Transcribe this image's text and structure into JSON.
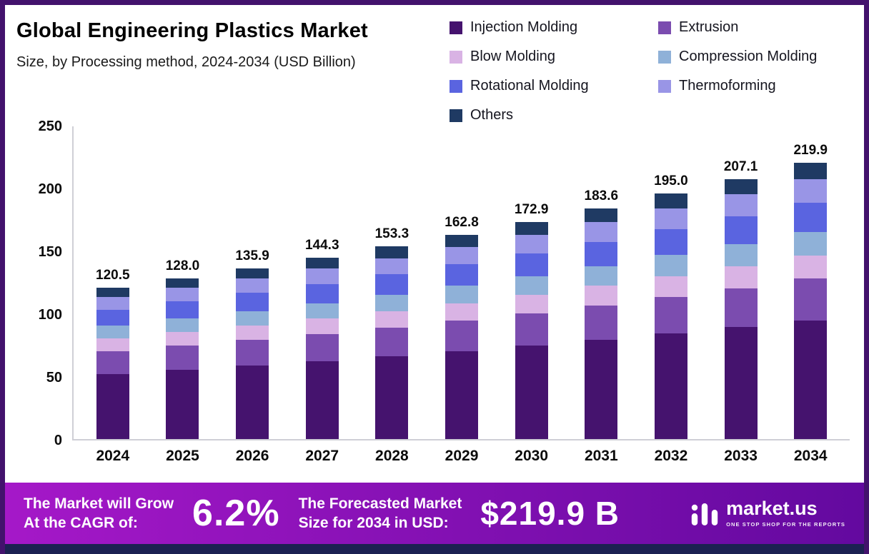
{
  "title": "Global Engineering Plastics Market",
  "subtitle": "Size, by Processing method, 2024-2034 (USD Billion)",
  "chart_data": {
    "type": "bar",
    "stacked": true,
    "unit": "USD Billion",
    "categories": [
      "2024",
      "2025",
      "2026",
      "2027",
      "2028",
      "2029",
      "2030",
      "2031",
      "2032",
      "2033",
      "2034"
    ],
    "totals": [
      120.5,
      128.0,
      135.9,
      144.3,
      153.3,
      162.8,
      172.9,
      183.6,
      195.0,
      207.1,
      219.9
    ],
    "total_labels": [
      "120.5",
      "128.0",
      "135.9",
      "144.3",
      "153.3",
      "162.8",
      "172.9",
      "183.6",
      "195.0",
      "207.1",
      "219.9"
    ],
    "ylim": [
      0,
      250
    ],
    "yticks": [
      0,
      50,
      100,
      150,
      200,
      250
    ],
    "grid": false,
    "legend_position": "top-right",
    "series": [
      {
        "name": "Injection Molding",
        "color": "#45136e",
        "values": [
          51.8,
          55.0,
          58.4,
          62.0,
          65.9,
          70.0,
          74.3,
          78.9,
          83.9,
          89.1,
          94.6
        ]
      },
      {
        "name": "Extrusion",
        "color": "#7b4caf",
        "values": [
          18.1,
          19.2,
          20.4,
          21.6,
          23.0,
          24.4,
          25.9,
          27.5,
          29.3,
          31.1,
          33.0
        ]
      },
      {
        "name": "Blow Molding",
        "color": "#d9b3e4",
        "values": [
          10.2,
          10.9,
          11.6,
          12.3,
          13.0,
          13.8,
          14.7,
          15.6,
          16.6,
          17.6,
          18.7
        ]
      },
      {
        "name": "Compression Molding",
        "color": "#8fb1d8",
        "values": [
          10.2,
          10.9,
          11.6,
          12.3,
          13.0,
          13.8,
          14.7,
          15.6,
          16.6,
          17.6,
          18.7
        ]
      },
      {
        "name": "Rotational Molding",
        "color": "#5a64e0",
        "values": [
          12.7,
          13.4,
          14.3,
          15.2,
          16.1,
          17.1,
          18.2,
          19.3,
          20.5,
          21.7,
          23.1
        ]
      },
      {
        "name": "Thermoforming",
        "color": "#9995e6",
        "values": [
          10.2,
          10.9,
          11.6,
          12.3,
          13.0,
          13.8,
          14.7,
          15.6,
          16.6,
          17.6,
          18.7
        ]
      },
      {
        "name": "Others",
        "color": "#1f3a63",
        "values": [
          7.3,
          7.7,
          8.2,
          8.6,
          9.2,
          9.8,
          10.4,
          11.0,
          11.7,
          12.4,
          13.1
        ]
      }
    ]
  },
  "banner": {
    "cagr_label": "The Market will Grow\nAt the CAGR of:",
    "cagr_value": "6.2%",
    "forecast_label": "The Forecasted Market\nSize for 2034 in USD:",
    "forecast_value": "$219.9 B",
    "gradient_left": "#a518c8",
    "gradient_right": "#63099f"
  },
  "logo": {
    "name": "market.us",
    "tagline": "ONE STOP SHOP FOR THE REPORTS"
  },
  "frame": {
    "border_color": "#43126d",
    "strip_color": "#1c2152"
  }
}
